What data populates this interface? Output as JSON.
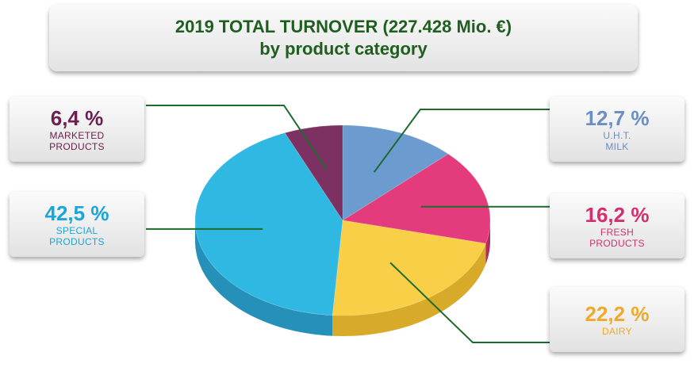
{
  "title": {
    "line1": "2019 TOTAL TURNOVER (227.428 Mio. €)",
    "line2": "by product category"
  },
  "colors": {
    "title": "#1f5e1f",
    "leader": "#1d6b2d"
  },
  "chart_data": {
    "type": "pie",
    "title": "2019 TOTAL TURNOVER (227.428 Mio. €) by product category",
    "slices": [
      {
        "key": "uht",
        "value": 12.7,
        "label": "12,7 %",
        "category_lines": [
          "U.H.T.",
          "MILK"
        ],
        "color": "#6b9bcf",
        "side": "#4c79a8",
        "label_color": "#6b8fc4"
      },
      {
        "key": "fresh",
        "value": 16.2,
        "label": "16,2 %",
        "category_lines": [
          "FRESH",
          "PRODUCTS"
        ],
        "color": "#e33b7b",
        "side": "#b52a60",
        "label_color": "#d42f6e"
      },
      {
        "key": "dairy",
        "value": 22.2,
        "label": "22,2 %",
        "category_lines": [
          "DAIRY"
        ],
        "color": "#f8cf47",
        "side": "#d8aa2a",
        "label_color": "#f0a92a"
      },
      {
        "key": "special",
        "value": 42.5,
        "label": "42,5 %",
        "category_lines": [
          "SPECIAL",
          "PRODUCTS"
        ],
        "color": "#2fb8e2",
        "side": "#2590b8",
        "label_color": "#1aa6d8"
      },
      {
        "key": "marketed",
        "value": 6.4,
        "label": "6,4 %",
        "category_lines": [
          "MARKETED",
          "PRODUCTS"
        ],
        "color": "#7d3163",
        "side": "#5c2248",
        "label_color": "#6b1f4f"
      }
    ]
  }
}
